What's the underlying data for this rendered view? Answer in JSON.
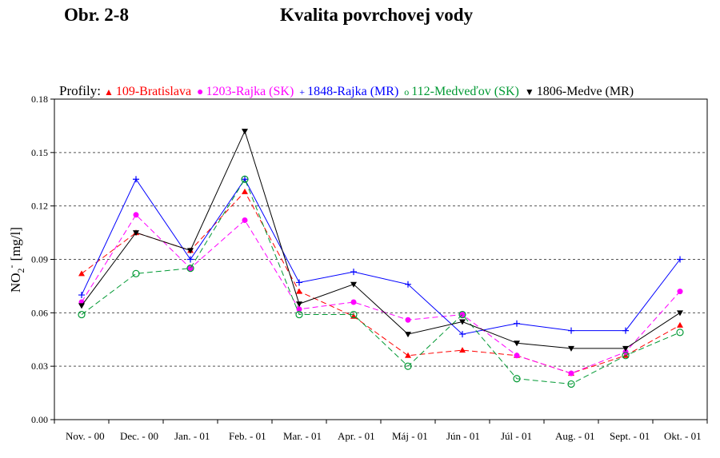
{
  "figure_label": "Obr. 2-8",
  "figure_title": "Kvalita povrchovej vody",
  "chart_data": {
    "type": "line",
    "categories": [
      "Nov. - 00",
      "Dec. - 00",
      "Jan. - 01",
      "Feb. - 01",
      "Mar. - 01",
      "Apr. - 01",
      "Máj - 01",
      "Jún - 01",
      "Júl - 01",
      "Aug. - 01",
      "Sept. - 01",
      "Okt. - 01"
    ],
    "ylim": [
      0,
      0.18
    ],
    "yticks": [
      0,
      0.03,
      0.06,
      0.09,
      0.12,
      0.15,
      0.18
    ],
    "ytick_labels": [
      "0.00",
      "0.03",
      "0.06",
      "0.09",
      "0.12",
      "0.15",
      "0.18"
    ],
    "ylabel": "NO2- [mg/l]",
    "ylabel_main": "NO",
    "ylabel_sub": "2",
    "ylabel_sup": "-",
    "ylabel_unit": "[mg/l]",
    "legend_title": "Profily:",
    "legend_placement": "top",
    "grid": "horizontal-dashed",
    "series": [
      {
        "name": "109-Bratislava",
        "color": "#ff0000",
        "marker": "triangle-up",
        "dashed": true,
        "values": [
          0.082,
          0.105,
          0.095,
          0.128,
          0.072,
          0.058,
          0.036,
          0.039,
          0.036,
          0.026,
          0.036,
          0.053
        ]
      },
      {
        "name": "1203-Rajka (SK)",
        "color": "#ff00ff",
        "marker": "dot",
        "dashed": true,
        "values": [
          0.066,
          0.115,
          0.085,
          0.112,
          0.062,
          0.066,
          0.056,
          0.059,
          0.036,
          0.026,
          0.038,
          0.072
        ]
      },
      {
        "name": "1848-Rajka (MR)",
        "color": "#0000ff",
        "marker": "plus",
        "dashed": false,
        "values": [
          0.07,
          0.135,
          0.09,
          0.135,
          0.077,
          0.083,
          0.076,
          0.048,
          0.054,
          0.05,
          0.05,
          0.09
        ]
      },
      {
        "name": "112-Medveďov (SK)",
        "color": "#009933",
        "marker": "circle-open",
        "dashed": true,
        "values": [
          0.059,
          0.082,
          0.085,
          0.135,
          0.059,
          0.059,
          0.03,
          0.059,
          0.023,
          0.02,
          0.036,
          0.049
        ]
      },
      {
        "name": "1806-Medve (MR)",
        "color": "#000000",
        "marker": "triangle-down",
        "dashed": false,
        "values": [
          0.064,
          0.105,
          0.095,
          0.162,
          0.065,
          0.076,
          0.048,
          0.055,
          0.043,
          0.04,
          0.04,
          0.06
        ]
      }
    ]
  }
}
